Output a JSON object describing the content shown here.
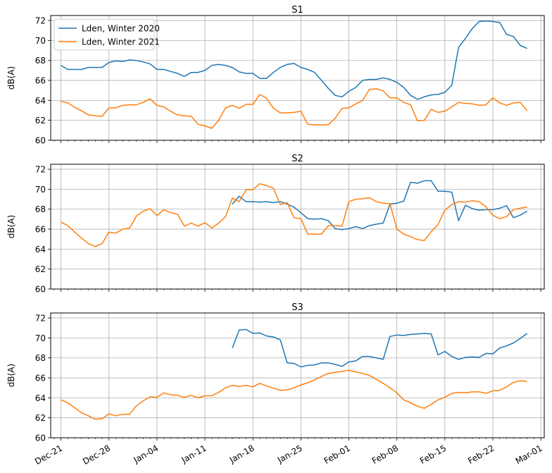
{
  "colors": {
    "series_2020": "#1f77b4",
    "series_2021": "#ff7f0e",
    "grid": "#b0b0b0"
  },
  "chart_data": {
    "type": "line",
    "x_unit": "days since Dec-21",
    "xlim": [
      -1.5,
      70.5
    ],
    "ylim": [
      60,
      72.5
    ],
    "yticks": [
      60,
      62,
      64,
      66,
      68,
      70,
      72
    ],
    "ylabel": "dB(A)",
    "xticks": [
      {
        "label": "Dec-21",
        "x": 0
      },
      {
        "label": "Dec-28",
        "x": 7
      },
      {
        "label": "Jan-04",
        "x": 14
      },
      {
        "label": "Jan-11",
        "x": 21
      },
      {
        "label": "Jan-18",
        "x": 28
      },
      {
        "label": "Jan-25",
        "x": 35
      },
      {
        "label": "Feb-01",
        "x": 42
      },
      {
        "label": "Feb-08",
        "x": 49
      },
      {
        "label": "Feb-15",
        "x": 56
      },
      {
        "label": "Feb-22",
        "x": 63
      },
      {
        "label": "Mar-01",
        "x": 70
      }
    ],
    "legend": {
      "position": "top-left",
      "entries": [
        "Lden, Winter 2020",
        "Lden, Winter 2021"
      ]
    },
    "panels": [
      {
        "title": "S1",
        "series": [
          {
            "name": "Lden, Winter 2020",
            "color": "#1f77b4",
            "x_start": 0,
            "values": [
              67.5,
              67.1,
              67.1,
              67.1,
              67.3,
              67.3,
              67.3,
              67.8,
              67.95,
              67.9,
              68.05,
              68.0,
              67.85,
              67.65,
              67.1,
              67.1,
              66.9,
              66.7,
              66.4,
              66.8,
              66.8,
              67.0,
              67.5,
              67.6,
              67.5,
              67.3,
              66.85,
              66.7,
              66.7,
              66.2,
              66.2,
              66.8,
              67.3,
              67.6,
              67.7,
              67.3,
              67.1,
              66.8,
              66.0,
              65.2,
              64.5,
              64.35,
              64.9,
              65.3,
              66.0,
              66.1,
              66.1,
              66.25,
              66.1,
              65.8,
              65.3,
              64.5,
              64.1,
              64.35,
              64.55,
              64.6,
              64.8,
              65.5,
              69.3,
              70.2,
              71.2,
              71.9,
              71.95,
              71.9,
              71.8,
              70.6,
              70.4,
              69.5,
              69.2
            ]
          },
          {
            "name": "Lden, Winter 2021",
            "color": "#ff7f0e",
            "x_start": 0,
            "values": [
              63.9,
              63.75,
              63.3,
              62.95,
              62.55,
              62.45,
              62.4,
              63.25,
              63.25,
              63.5,
              63.55,
              63.55,
              63.8,
              64.15,
              63.5,
              63.35,
              62.9,
              62.55,
              62.45,
              62.4,
              61.6,
              61.45,
              61.2,
              62.0,
              63.25,
              63.5,
              63.2,
              63.6,
              63.6,
              64.6,
              64.2,
              63.2,
              62.75,
              62.75,
              62.8,
              62.9,
              61.6,
              61.55,
              61.55,
              61.55,
              62.2,
              63.2,
              63.25,
              63.65,
              64.0,
              65.1,
              65.15,
              64.95,
              64.25,
              64.25,
              63.8,
              63.55,
              61.95,
              62.0,
              63.1,
              62.8,
              62.9,
              63.35,
              63.8,
              63.7,
              63.65,
              63.5,
              63.55,
              64.25,
              63.75,
              63.5,
              63.75,
              63.8,
              62.95
            ]
          }
        ]
      },
      {
        "title": "S2",
        "series": [
          {
            "name": "Lden, Winter 2020",
            "color": "#1f77b4",
            "x_start": 25,
            "values": [
              68.5,
              69.3,
              68.75,
              68.75,
              68.7,
              68.75,
              68.65,
              68.75,
              68.5,
              68.2,
              67.65,
              67.05,
              67.0,
              67.05,
              66.85,
              66.05,
              65.95,
              66.05,
              66.25,
              66.05,
              66.35,
              66.5,
              66.6,
              68.5,
              68.6,
              68.8,
              70.7,
              70.6,
              70.85,
              70.85,
              69.8,
              69.8,
              69.7,
              66.85,
              68.4,
              68.05,
              67.9,
              67.95,
              67.95,
              68.1,
              68.35,
              67.15,
              67.4,
              67.8
            ]
          },
          {
            "name": "Lden, Winter 2021",
            "color": "#ff7f0e",
            "x_start": 0,
            "values": [
              66.7,
              66.35,
              65.7,
              65.1,
              64.55,
              64.25,
              64.55,
              65.7,
              65.6,
              66.0,
              66.1,
              67.3,
              67.8,
              68.05,
              67.35,
              67.95,
              67.65,
              67.5,
              66.3,
              66.6,
              66.3,
              66.65,
              66.1,
              66.6,
              67.25,
              69.1,
              68.75,
              69.95,
              69.95,
              70.55,
              70.35,
              70.1,
              68.45,
              68.65,
              67.15,
              67.05,
              65.5,
              65.5,
              65.5,
              66.35,
              66.35,
              66.3,
              68.75,
              69.0,
              69.05,
              69.15,
              68.75,
              68.6,
              68.55,
              66.0,
              65.5,
              65.25,
              64.95,
              64.85,
              65.75,
              66.45,
              67.9,
              68.45,
              68.75,
              68.7,
              68.85,
              68.75,
              68.25,
              67.4,
              67.05,
              67.25,
              67.95,
              68.1,
              68.2
            ]
          }
        ]
      },
      {
        "title": "S3",
        "series": [
          {
            "name": "Lden, Winter 2020",
            "color": "#1f77b4",
            "x_start": 25,
            "values": [
              69.0,
              70.8,
              70.85,
              70.45,
              70.5,
              70.2,
              70.1,
              69.8,
              67.5,
              67.45,
              67.1,
              67.25,
              67.3,
              67.5,
              67.5,
              67.35,
              67.15,
              67.6,
              67.7,
              68.15,
              68.15,
              68.0,
              67.85,
              70.15,
              70.3,
              70.25,
              70.35,
              70.4,
              70.45,
              70.4,
              68.3,
              68.65,
              68.15,
              67.85,
              68.05,
              68.1,
              68.05,
              68.45,
              68.4,
              69.0,
              69.2,
              69.5,
              69.95,
              70.45
            ]
          },
          {
            "name": "Lden, Winter 2021",
            "color": "#ff7f0e",
            "x_start": 0,
            "values": [
              63.8,
              63.5,
              63.0,
              62.5,
              62.2,
              61.85,
              61.9,
              62.4,
              62.2,
              62.35,
              62.35,
              63.2,
              63.7,
              64.1,
              64.05,
              64.5,
              64.3,
              64.25,
              64.05,
              64.25,
              64.0,
              64.2,
              64.2,
              64.55,
              65.0,
              65.25,
              65.15,
              65.25,
              65.1,
              65.45,
              65.2,
              64.95,
              64.75,
              64.8,
              65.0,
              65.3,
              65.5,
              65.8,
              66.15,
              66.45,
              66.55,
              66.65,
              66.75,
              66.6,
              66.45,
              66.25,
              65.85,
              65.45,
              65.0,
              64.5,
              63.8,
              63.5,
              63.15,
              62.95,
              63.35,
              63.8,
              64.05,
              64.45,
              64.55,
              64.5,
              64.6,
              64.6,
              64.45,
              64.7,
              64.75,
              65.1,
              65.55,
              65.7,
              65.65
            ]
          }
        ]
      }
    ]
  }
}
